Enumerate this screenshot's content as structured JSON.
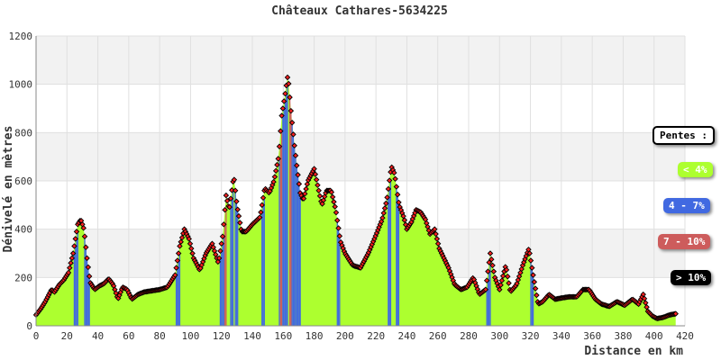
{
  "chart_data": {
    "type": "area",
    "title": "Châteaux Cathares-5634225",
    "xlabel": "Distance en km",
    "ylabel": "Dénivelé en mètres",
    "xlim": [
      0,
      420
    ],
    "ylim": [
      0,
      1200
    ],
    "x_ticks": [
      0,
      20,
      40,
      60,
      80,
      100,
      120,
      140,
      160,
      180,
      200,
      220,
      240,
      260,
      280,
      300,
      320,
      340,
      360,
      380,
      400,
      420
    ],
    "y_ticks": [
      0,
      200,
      400,
      600,
      800,
      1000,
      1200
    ],
    "grid": true,
    "legend_position": "right",
    "profile": {
      "x": [
        0,
        3,
        6,
        10,
        12,
        15,
        18,
        21,
        24,
        27,
        29,
        31,
        33,
        35,
        38,
        41,
        44,
        47,
        50,
        53,
        56,
        59,
        62,
        66,
        70,
        75,
        80,
        85,
        90,
        93,
        96,
        99,
        102,
        106,
        110,
        114,
        118,
        121,
        123,
        125,
        128,
        130,
        133,
        136,
        140,
        145,
        148,
        151,
        154,
        157,
        159,
        161,
        163,
        165,
        167,
        169,
        171,
        173,
        176,
        180,
        183,
        185,
        188,
        191,
        194,
        197,
        200,
        205,
        210,
        215,
        219,
        224,
        227,
        230,
        232,
        235,
        238,
        240,
        243,
        246,
        249,
        252,
        255,
        258,
        261,
        264,
        267,
        271,
        275,
        279,
        283,
        287,
        291,
        294,
        297,
        300,
        304,
        307,
        311,
        315,
        319,
        322,
        325,
        328,
        332,
        336,
        340,
        345,
        350,
        354,
        358,
        362,
        366,
        371,
        376,
        381,
        386,
        390,
        393,
        396,
        399,
        402,
        406,
        410,
        414
      ],
      "y": [
        45,
        70,
        100,
        150,
        140,
        170,
        190,
        220,
        300,
        420,
        440,
        400,
        280,
        180,
        150,
        165,
        175,
        195,
        170,
        110,
        160,
        150,
        110,
        130,
        140,
        145,
        150,
        160,
        210,
        330,
        400,
        360,
        280,
        230,
        300,
        340,
        260,
        380,
        540,
        480,
        620,
        500,
        390,
        390,
        420,
        450,
        570,
        550,
        600,
        700,
        870,
        950,
        1040,
        890,
        760,
        650,
        550,
        520,
        600,
        650,
        560,
        500,
        560,
        560,
        480,
        350,
        300,
        250,
        240,
        300,
        360,
        440,
        520,
        660,
        630,
        500,
        450,
        400,
        430,
        480,
        470,
        440,
        380,
        400,
        320,
        280,
        240,
        170,
        150,
        160,
        200,
        130,
        150,
        300,
        200,
        150,
        250,
        140,
        170,
        250,
        320,
        200,
        90,
        100,
        130,
        110,
        115,
        120,
        120,
        150,
        150,
        110,
        90,
        80,
        100,
        85,
        110,
        90,
        130,
        60,
        40,
        30,
        35,
        45,
        50
      ]
    },
    "legend": {
      "title": "Pentes :",
      "items": [
        {
          "label": "< 4%",
          "color": "#adff2f",
          "text_color": "#ffffff"
        },
        {
          "label": "4 - 7%",
          "color": "#4169e1",
          "text_color": "#ffffff"
        },
        {
          "label": "7 - 10%",
          "color": "#cd5c5c",
          "text_color": "#ffffff"
        },
        {
          "label": "> 10%",
          "color": "#000000",
          "text_color": "#ffffff"
        }
      ]
    },
    "colors": {
      "fill": "#adff2f",
      "marker_fill": "#ff2020",
      "marker_stroke": "#000000",
      "band": "#f2f2f2",
      "grid": "#e0e0e0"
    }
  }
}
